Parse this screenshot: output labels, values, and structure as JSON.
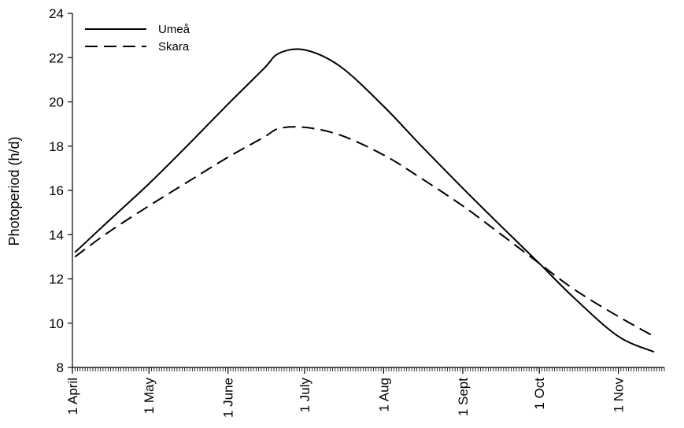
{
  "chart_data": {
    "type": "line",
    "title": "",
    "xlabel": "",
    "ylabel": "Photoperiod (h/d)",
    "ylim": [
      8,
      24
    ],
    "yticks": [
      8,
      10,
      12,
      14,
      16,
      18,
      20,
      22,
      24
    ],
    "xlim": [
      "04-01",
      "11-19"
    ],
    "xtick_labels": [
      {
        "date": "04-01",
        "label": "1 April"
      },
      {
        "date": "05-01",
        "label": "1 May"
      },
      {
        "date": "06-01",
        "label": "1 June"
      },
      {
        "date": "07-01",
        "label": "1 July"
      },
      {
        "date": "08-01",
        "label": "1 Aug"
      },
      {
        "date": "09-01",
        "label": "1 Sept"
      },
      {
        "date": "10-01",
        "label": "1 Oct"
      },
      {
        "date": "11-01",
        "label": "1 Nov"
      }
    ],
    "minor_ticks": "daily",
    "grid": false,
    "legend_position": "top-left",
    "series": [
      {
        "name": "Umeå",
        "style": "solid",
        "color": "#000000",
        "x": [
          "04-02",
          "04-15",
          "05-01",
          "05-15",
          "06-01",
          "06-15",
          "06-21",
          "07-01",
          "07-15",
          "08-01",
          "08-15",
          "09-01",
          "09-15",
          "10-01",
          "10-15",
          "11-01",
          "11-15"
        ],
        "y": [
          13.2,
          14.6,
          16.3,
          17.9,
          19.9,
          21.5,
          22.2,
          22.35,
          21.6,
          19.8,
          18.1,
          16.1,
          14.5,
          12.7,
          11.1,
          9.4,
          8.7
        ]
      },
      {
        "name": "Skara",
        "style": "dashed",
        "color": "#000000",
        "x": [
          "04-02",
          "04-15",
          "05-01",
          "05-15",
          "06-01",
          "06-15",
          "06-21",
          "07-01",
          "07-15",
          "08-01",
          "08-15",
          "09-01",
          "09-15",
          "10-01",
          "10-15",
          "11-01",
          "11-15"
        ],
        "y": [
          13.0,
          14.1,
          15.3,
          16.3,
          17.5,
          18.4,
          18.8,
          18.85,
          18.5,
          17.6,
          16.6,
          15.3,
          14.1,
          12.7,
          11.5,
          10.3,
          9.4
        ]
      }
    ]
  }
}
